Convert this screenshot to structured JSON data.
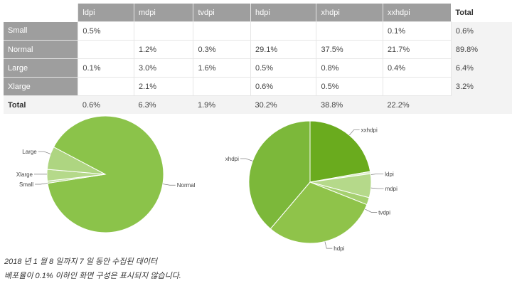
{
  "table": {
    "columns": [
      "ldpi",
      "mdpi",
      "tvdpi",
      "hdpi",
      "xhdpi",
      "xxhdpi",
      "Total"
    ],
    "rows": [
      {
        "label": "Small",
        "cells": [
          "0.5%",
          "",
          "",
          "",
          "",
          "0.1%",
          "0.6%"
        ]
      },
      {
        "label": "Normal",
        "cells": [
          "",
          "1.2%",
          "0.3%",
          "29.1%",
          "37.5%",
          "21.7%",
          "89.8%"
        ]
      },
      {
        "label": "Large",
        "cells": [
          "0.1%",
          "3.0%",
          "1.6%",
          "0.5%",
          "0.8%",
          "0.4%",
          "6.4%"
        ]
      },
      {
        "label": "Xlarge",
        "cells": [
          "",
          "2.1%",
          "",
          "0.6%",
          "0.5%",
          "",
          "3.2%"
        ]
      }
    ],
    "total_row": {
      "label": "Total",
      "cells": [
        "0.6%",
        "6.3%",
        "1.9%",
        "30.2%",
        "38.8%",
        "22.2%",
        ""
      ]
    }
  },
  "chart_data": [
    {
      "type": "pie",
      "labels": [
        "Normal",
        "Small",
        "Xlarge",
        "Large"
      ],
      "values": [
        89.8,
        0.6,
        3.2,
        6.4
      ],
      "colors": [
        "#8bc34a",
        "#c5e1a5",
        "#b5d98a",
        "#aed581"
      ]
    },
    {
      "type": "pie",
      "labels": [
        "xxhdpi",
        "ldpi",
        "mdpi",
        "tvdpi",
        "hdpi",
        "xhdpi"
      ],
      "values": [
        22.2,
        0.6,
        6.3,
        1.9,
        30.2,
        38.8
      ],
      "colors": [
        "#6aab1e",
        "#dcedc8",
        "#b5d98a",
        "#a5d070",
        "#8fc34a",
        "#7cb83a"
      ]
    }
  ],
  "caption": {
    "line1": "2018 년 1 월 8 일까지 7 일 동안 수집된 데이터",
    "line2": "배포율이 0.1% 이하인 화면 구성은 표시되지 않습니다."
  }
}
